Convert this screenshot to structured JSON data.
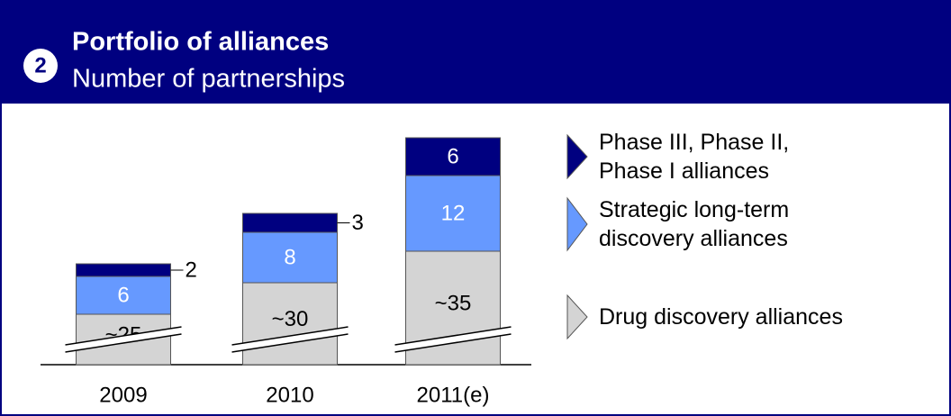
{
  "header": {
    "badge": "2",
    "title": "Portfolio of alliances",
    "subtitle": "Number of partnerships"
  },
  "chart_data": {
    "type": "stacked_bar",
    "categories": [
      "2009",
      "2010",
      "2011(e)"
    ],
    "series": [
      {
        "name": "Drug discovery alliances",
        "color": "#d4d4d4",
        "values": [
          25,
          30,
          35
        ],
        "value_labels": [
          "~25",
          "~30",
          "~35"
        ]
      },
      {
        "name": "Strategic long-term discovery alliances",
        "color": "#6699ff",
        "values": [
          6,
          8,
          12
        ]
      },
      {
        "name": "Phase III, Phase II, Phase I alliances",
        "color": "#000080",
        "values": [
          2,
          3,
          6
        ]
      }
    ],
    "ylim": [
      17,
      55
    ],
    "axis_break": true
  }
}
